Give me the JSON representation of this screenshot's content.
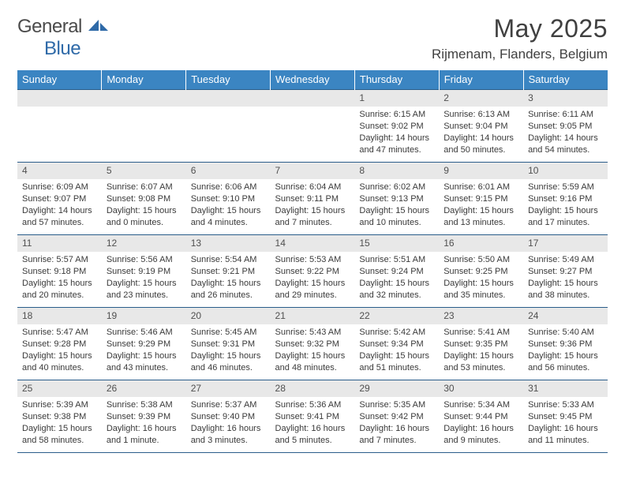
{
  "brand": {
    "part1": "General",
    "part2": "Blue"
  },
  "title": "May 2025",
  "location": "Rijmenam, Flanders, Belgium",
  "colors": {
    "header_bg": "#3b85c2",
    "header_text": "#ffffff",
    "rule": "#2a5d8a",
    "daynum_bg": "#e8e8e8",
    "body_text": "#3a3a3a",
    "page_bg": "#ffffff",
    "logo_blue": "#2f6aa8"
  },
  "weekdays": [
    "Sunday",
    "Monday",
    "Tuesday",
    "Wednesday",
    "Thursday",
    "Friday",
    "Saturday"
  ],
  "weeks": [
    [
      null,
      null,
      null,
      null,
      {
        "n": "1",
        "sr": "6:15 AM",
        "ss": "9:02 PM",
        "dl": "14 hours and 47 minutes."
      },
      {
        "n": "2",
        "sr": "6:13 AM",
        "ss": "9:04 PM",
        "dl": "14 hours and 50 minutes."
      },
      {
        "n": "3",
        "sr": "6:11 AM",
        "ss": "9:05 PM",
        "dl": "14 hours and 54 minutes."
      }
    ],
    [
      {
        "n": "4",
        "sr": "6:09 AM",
        "ss": "9:07 PM",
        "dl": "14 hours and 57 minutes."
      },
      {
        "n": "5",
        "sr": "6:07 AM",
        "ss": "9:08 PM",
        "dl": "15 hours and 0 minutes."
      },
      {
        "n": "6",
        "sr": "6:06 AM",
        "ss": "9:10 PM",
        "dl": "15 hours and 4 minutes."
      },
      {
        "n": "7",
        "sr": "6:04 AM",
        "ss": "9:11 PM",
        "dl": "15 hours and 7 minutes."
      },
      {
        "n": "8",
        "sr": "6:02 AM",
        "ss": "9:13 PM",
        "dl": "15 hours and 10 minutes."
      },
      {
        "n": "9",
        "sr": "6:01 AM",
        "ss": "9:15 PM",
        "dl": "15 hours and 13 minutes."
      },
      {
        "n": "10",
        "sr": "5:59 AM",
        "ss": "9:16 PM",
        "dl": "15 hours and 17 minutes."
      }
    ],
    [
      {
        "n": "11",
        "sr": "5:57 AM",
        "ss": "9:18 PM",
        "dl": "15 hours and 20 minutes."
      },
      {
        "n": "12",
        "sr": "5:56 AM",
        "ss": "9:19 PM",
        "dl": "15 hours and 23 minutes."
      },
      {
        "n": "13",
        "sr": "5:54 AM",
        "ss": "9:21 PM",
        "dl": "15 hours and 26 minutes."
      },
      {
        "n": "14",
        "sr": "5:53 AM",
        "ss": "9:22 PM",
        "dl": "15 hours and 29 minutes."
      },
      {
        "n": "15",
        "sr": "5:51 AM",
        "ss": "9:24 PM",
        "dl": "15 hours and 32 minutes."
      },
      {
        "n": "16",
        "sr": "5:50 AM",
        "ss": "9:25 PM",
        "dl": "15 hours and 35 minutes."
      },
      {
        "n": "17",
        "sr": "5:49 AM",
        "ss": "9:27 PM",
        "dl": "15 hours and 38 minutes."
      }
    ],
    [
      {
        "n": "18",
        "sr": "5:47 AM",
        "ss": "9:28 PM",
        "dl": "15 hours and 40 minutes."
      },
      {
        "n": "19",
        "sr": "5:46 AM",
        "ss": "9:29 PM",
        "dl": "15 hours and 43 minutes."
      },
      {
        "n": "20",
        "sr": "5:45 AM",
        "ss": "9:31 PM",
        "dl": "15 hours and 46 minutes."
      },
      {
        "n": "21",
        "sr": "5:43 AM",
        "ss": "9:32 PM",
        "dl": "15 hours and 48 minutes."
      },
      {
        "n": "22",
        "sr": "5:42 AM",
        "ss": "9:34 PM",
        "dl": "15 hours and 51 minutes."
      },
      {
        "n": "23",
        "sr": "5:41 AM",
        "ss": "9:35 PM",
        "dl": "15 hours and 53 minutes."
      },
      {
        "n": "24",
        "sr": "5:40 AM",
        "ss": "9:36 PM",
        "dl": "15 hours and 56 minutes."
      }
    ],
    [
      {
        "n": "25",
        "sr": "5:39 AM",
        "ss": "9:38 PM",
        "dl": "15 hours and 58 minutes."
      },
      {
        "n": "26",
        "sr": "5:38 AM",
        "ss": "9:39 PM",
        "dl": "16 hours and 1 minute."
      },
      {
        "n": "27",
        "sr": "5:37 AM",
        "ss": "9:40 PM",
        "dl": "16 hours and 3 minutes."
      },
      {
        "n": "28",
        "sr": "5:36 AM",
        "ss": "9:41 PM",
        "dl": "16 hours and 5 minutes."
      },
      {
        "n": "29",
        "sr": "5:35 AM",
        "ss": "9:42 PM",
        "dl": "16 hours and 7 minutes."
      },
      {
        "n": "30",
        "sr": "5:34 AM",
        "ss": "9:44 PM",
        "dl": "16 hours and 9 minutes."
      },
      {
        "n": "31",
        "sr": "5:33 AM",
        "ss": "9:45 PM",
        "dl": "16 hours and 11 minutes."
      }
    ]
  ],
  "labels": {
    "sunrise": "Sunrise:",
    "sunset": "Sunset:",
    "daylight": "Daylight:"
  }
}
